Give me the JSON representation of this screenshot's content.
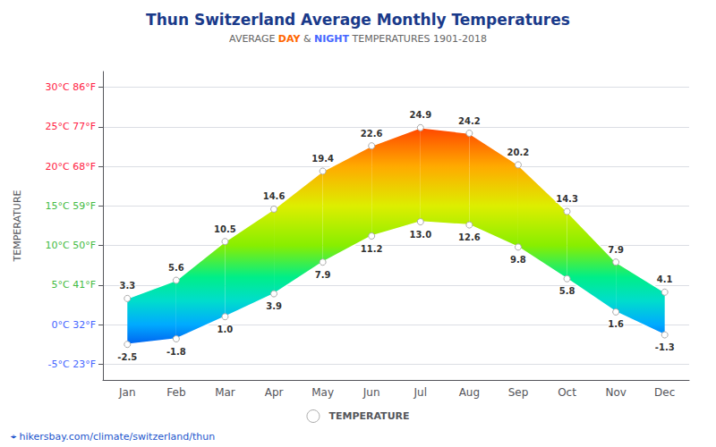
{
  "chart_data": {
    "type": "range",
    "title": "Thun Switzerland Average Monthly Temperatures",
    "title_color": "#1a3a8a",
    "subtitle": [
      {
        "text": "AVERAGE ",
        "color": "#666666",
        "weight": "normal"
      },
      {
        "text": "DAY",
        "color": "#ff6600",
        "weight": "bold"
      },
      {
        "text": " & ",
        "color": "#666666",
        "weight": "normal"
      },
      {
        "text": "NIGHT",
        "color": "#4466ff",
        "weight": "bold"
      },
      {
        "text": " TEMPERATURES 1901-2018",
        "color": "#666666",
        "weight": "normal"
      }
    ],
    "categories": [
      "Jan",
      "Feb",
      "Mar",
      "Apr",
      "May",
      "Jun",
      "Jul",
      "Aug",
      "Sep",
      "Oct",
      "Nov",
      "Dec"
    ],
    "series": [
      {
        "name": "TEMPERATURE",
        "color": "#ffffff",
        "edge_color": "#aaaaaa",
        "marker": "circle",
        "values": [
          3.3,
          5.6,
          10.5,
          14.6,
          19.4,
          22.6,
          24.9,
          24.2,
          20.2,
          14.3,
          7.9,
          4.1
        ],
        "low_values": [
          -2.5,
          -1.8,
          1.0,
          3.9,
          7.9,
          11.2,
          13.0,
          12.6,
          9.8,
          5.8,
          1.6,
          -1.3
        ],
        "low_value_labels": [
          "-2.5",
          "-1.8",
          "1.0",
          "3.9",
          "7.9",
          "11.2",
          "13.0",
          "12.6",
          "9.8",
          "5.8",
          "1.6",
          "-1.3"
        ]
      }
    ],
    "ylabel": "TEMPERATURE",
    "ylim": [
      -7,
      32
    ],
    "yticks": [
      {
        "value": -5,
        "label": "-5°C 23°F",
        "color": "#4466ff"
      },
      {
        "value": 0,
        "label": "0°C 32°F",
        "color": "#4466ff"
      },
      {
        "value": 5,
        "label": "5°C 41°F",
        "color": "#44bb44"
      },
      {
        "value": 10,
        "label": "10°C 50°F",
        "color": "#44bb44"
      },
      {
        "value": 15,
        "label": "15°C 59°F",
        "color": "#44bb44"
      },
      {
        "value": 20,
        "label": "20°C 68°F",
        "color": "#ff2244"
      },
      {
        "value": 25,
        "label": "25°C 77°F",
        "color": "#ff2244"
      },
      {
        "value": 30,
        "label": "30°C 86°F",
        "color": "#ff2244"
      }
    ],
    "grid": true,
    "data_labels": true,
    "legend": "bottom",
    "color_scale": {
      "values": [
        -6,
        -3,
        0,
        3,
        6,
        10,
        15,
        20,
        25,
        30
      ],
      "colors": [
        "#0000cc",
        "#0055ee",
        "#00aaff",
        "#00ddcc",
        "#00ee88",
        "#88ee00",
        "#ddee00",
        "#ffaa00",
        "#ff4400",
        "#cc0000"
      ]
    },
    "annotations": [
      {
        "text": "⌖ hikersbay.com/climate/switzerland/thun",
        "color": "#2255cc"
      }
    ]
  }
}
